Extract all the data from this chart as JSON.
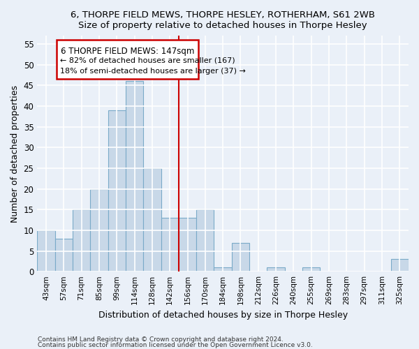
{
  "title": "6, THORPE FIELD MEWS, THORPE HESLEY, ROTHERHAM, S61 2WB",
  "subtitle": "Size of property relative to detached houses in Thorpe Hesley",
  "xlabel": "Distribution of detached houses by size in Thorpe Hesley",
  "ylabel": "Number of detached properties",
  "categories": [
    "43sqm",
    "57sqm",
    "71sqm",
    "85sqm",
    "99sqm",
    "114sqm",
    "128sqm",
    "142sqm",
    "156sqm",
    "170sqm",
    "184sqm",
    "198sqm",
    "212sqm",
    "226sqm",
    "240sqm",
    "255sqm",
    "269sqm",
    "283sqm",
    "297sqm",
    "311sqm",
    "325sqm"
  ],
  "values": [
    10,
    8,
    15,
    20,
    39,
    46,
    25,
    13,
    13,
    15,
    1,
    7,
    0,
    1,
    0,
    1,
    0,
    0,
    0,
    0,
    3
  ],
  "bar_color": "#c8d8e8",
  "bar_edgecolor": "#7aaac8",
  "vline_x": 7.5,
  "vline_color": "#cc0000",
  "annotation_line1": "6 THORPE FIELD MEWS: 147sqm",
  "annotation_line2": "← 82% of detached houses are smaller (167)",
  "annotation_line3": "18% of semi-detached houses are larger (37) →",
  "ylim": [
    0,
    57
  ],
  "yticks": [
    0,
    5,
    10,
    15,
    20,
    25,
    30,
    35,
    40,
    45,
    50,
    55
  ],
  "footer_line1": "Contains HM Land Registry data © Crown copyright and database right 2024.",
  "footer_line2": "Contains public sector information licensed under the Open Government Licence v3.0.",
  "bg_color": "#eaf0f8",
  "grid_color": "#ffffff"
}
